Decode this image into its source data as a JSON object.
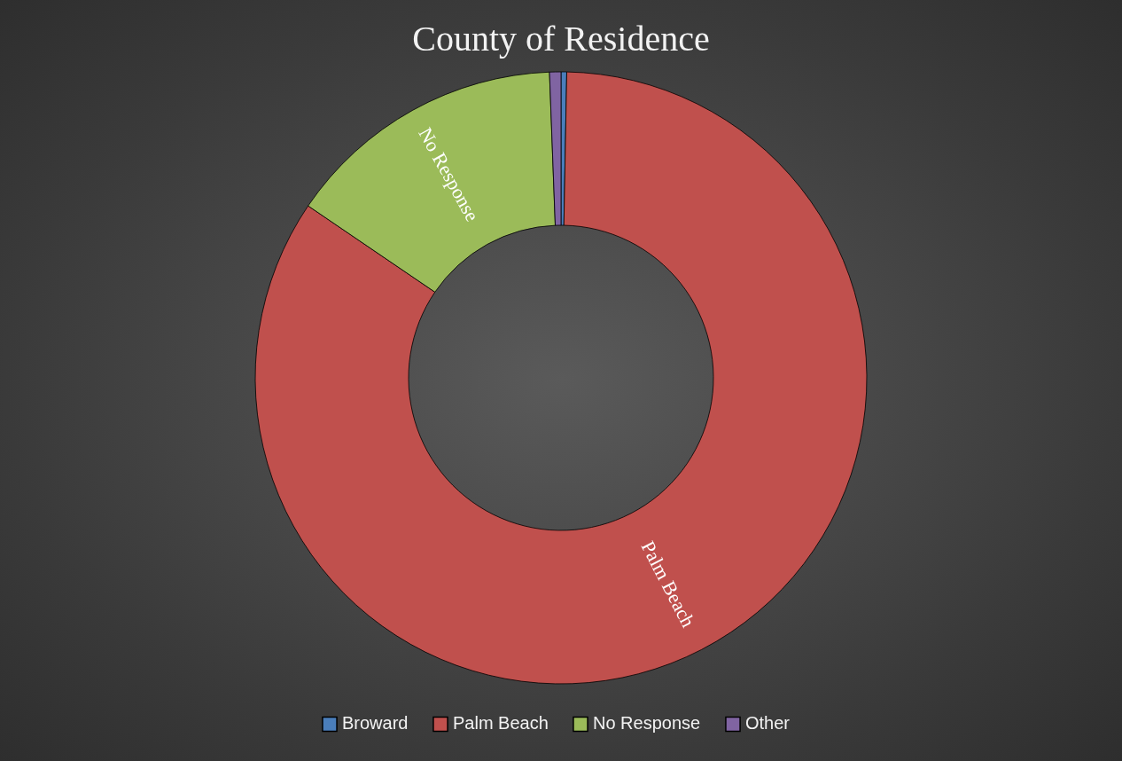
{
  "chart_data": {
    "type": "donut",
    "title": "County of Residence",
    "categories": [
      "Broward",
      "Palm Beach",
      "No Response",
      "Other"
    ],
    "values": [
      0.3,
      84.2,
      14.9,
      0.6
    ],
    "colors": [
      "#4a7ebb",
      "#c0504d",
      "#9bbb59",
      "#8064a2"
    ],
    "value_labels": [
      null,
      "Palm Beach",
      "No Response",
      null
    ],
    "legend": "bottom"
  }
}
